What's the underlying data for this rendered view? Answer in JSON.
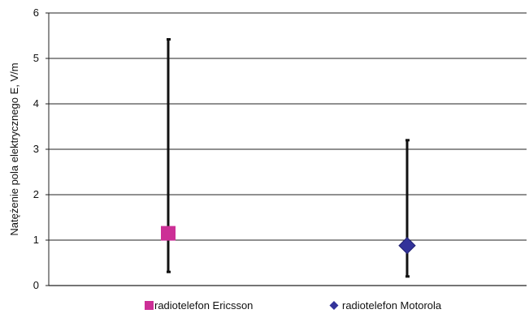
{
  "chart_data": {
    "type": "scatter",
    "title": "",
    "xlabel": "",
    "ylabel": "Natężenie pola elektrycznego E, V/m",
    "ylim": [
      0,
      6
    ],
    "yticks": [
      0,
      1,
      2,
      3,
      4,
      5,
      6
    ],
    "grid": "horizontal",
    "legend_position": "bottom",
    "series": [
      {
        "name": "radiotelefon Ericsson",
        "marker": "square",
        "color": "#cc2f96",
        "value": 1.15,
        "min": 0.3,
        "max": 5.42
      },
      {
        "name": "radiotelefon Motorola",
        "marker": "diamond",
        "color": "#33339a",
        "value": 0.88,
        "min": 0.2,
        "max": 3.2
      }
    ]
  }
}
